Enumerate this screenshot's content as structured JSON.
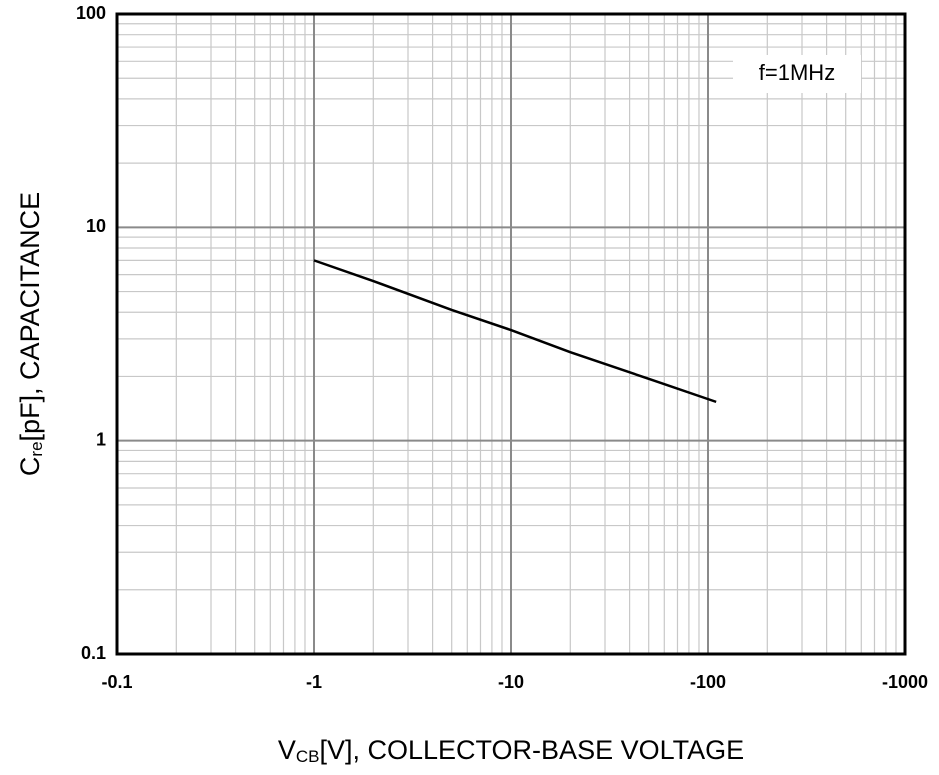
{
  "chart_data": {
    "type": "line",
    "xlabel": {
      "main": "V",
      "sub": "CB",
      "rest": "[V], COLLECTOR-BASE VOLTAGE"
    },
    "ylabel": {
      "main": "C",
      "sub": "re",
      "rest": "[pF], CAPACITANCE"
    },
    "annotation": "f=1MHz",
    "x": [
      -1,
      -2,
      -5,
      -10,
      -20,
      -50,
      -110
    ],
    "series": [
      {
        "color": "#000000",
        "values": [
          7,
          5.6,
          4.1,
          3.3,
          2.6,
          1.95,
          1.52
        ]
      }
    ],
    "xlim": [
      -0.1,
      -1000
    ],
    "xticks": [
      -0.1,
      -1,
      -10,
      -100,
      -1000
    ],
    "ylim": [
      0.1,
      100
    ],
    "yticks": [
      0.1,
      1,
      10,
      100
    ],
    "log_scale": [
      "x",
      "y"
    ],
    "grid": true
  }
}
